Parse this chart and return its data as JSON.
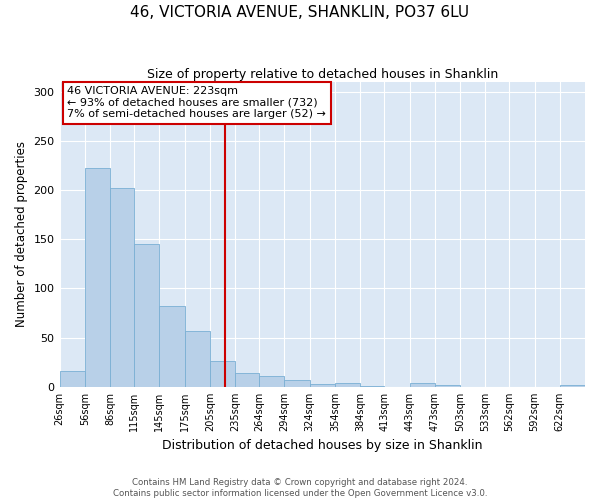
{
  "title": "46, VICTORIA AVENUE, SHANKLIN, PO37 6LU",
  "subtitle": "Size of property relative to detached houses in Shanklin",
  "xlabel": "Distribution of detached houses by size in Shanklin",
  "ylabel": "Number of detached properties",
  "bin_labels": [
    "26sqm",
    "56sqm",
    "86sqm",
    "115sqm",
    "145sqm",
    "175sqm",
    "205sqm",
    "235sqm",
    "264sqm",
    "294sqm",
    "324sqm",
    "354sqm",
    "384sqm",
    "413sqm",
    "443sqm",
    "473sqm",
    "503sqm",
    "533sqm",
    "562sqm",
    "592sqm",
    "622sqm"
  ],
  "bar_values": [
    16,
    222,
    202,
    145,
    82,
    57,
    26,
    14,
    11,
    7,
    3,
    4,
    1,
    0,
    4,
    2,
    0,
    0,
    0,
    0,
    2
  ],
  "bar_color": "#b8d0e8",
  "bar_edge_color": "#7aafd4",
  "ylim": [
    0,
    310
  ],
  "yticks": [
    0,
    50,
    100,
    150,
    200,
    250,
    300
  ],
  "property_line_x": 223,
  "property_line_color": "#cc0000",
  "annotation_title": "46 VICTORIA AVENUE: 223sqm",
  "annotation_line1": "← 93% of detached houses are smaller (732)",
  "annotation_line2": "7% of semi-detached houses are larger (52) →",
  "annotation_box_color": "#cc0000",
  "footer_line1": "Contains HM Land Registry data © Crown copyright and database right 2024.",
  "footer_line2": "Contains public sector information licensed under the Open Government Licence v3.0.",
  "fig_bg_color": "#ffffff",
  "plot_bg_color": "#dce8f5",
  "title_fontsize": 11,
  "subtitle_fontsize": 9,
  "bin_edges": [
    26,
    56,
    86,
    115,
    145,
    175,
    205,
    235,
    264,
    294,
    324,
    354,
    384,
    413,
    443,
    473,
    503,
    533,
    562,
    592,
    622,
    652
  ]
}
